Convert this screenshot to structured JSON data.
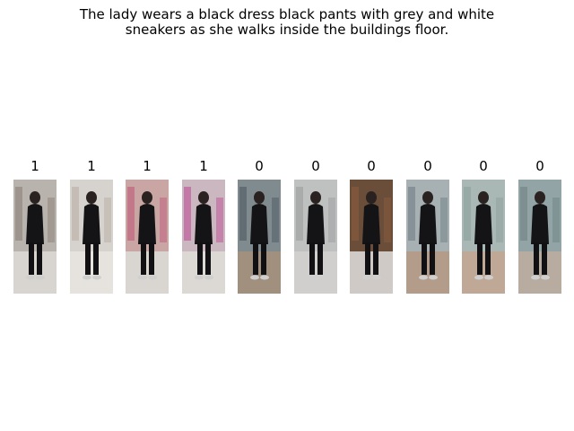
{
  "caption": {
    "line1": "The lady wears a black dress black pants with grey and white",
    "line2": "sneakers as she walks inside the buildings floor."
  },
  "images": [
    {
      "label": "1",
      "bg": "#b9b3ad",
      "floor": "#d8d4cf",
      "accent": "#8a7f78"
    },
    {
      "label": "1",
      "bg": "#d6d2cd",
      "floor": "#e6e3df",
      "accent": "#b7aea5"
    },
    {
      "label": "1",
      "bg": "#c9a6a3",
      "floor": "#d9d5d0",
      "accent": "#c05a7a"
    },
    {
      "label": "1",
      "bg": "#cbb7bf",
      "floor": "#dcd8d4",
      "accent": "#c04f9a"
    },
    {
      "label": "0",
      "bg": "#7f8b8e",
      "floor": "#a2907f",
      "accent": "#4d5a60"
    },
    {
      "label": "0",
      "bg": "#bfc0c0",
      "floor": "#d0cfcd",
      "accent": "#9d9e9f"
    },
    {
      "label": "0",
      "bg": "#6a4e3a",
      "floor": "#cfcac6",
      "accent": "#8a5b3c"
    },
    {
      "label": "0",
      "bg": "#a7b0b3",
      "floor": "#b49c8a",
      "accent": "#6f7f86"
    },
    {
      "label": "0",
      "bg": "#a9b8b4",
      "floor": "#c0a896",
      "accent": "#8da09b"
    },
    {
      "label": "0",
      "bg": "#93a4a6",
      "floor": "#b8aca0",
      "accent": "#6e8284"
    }
  ]
}
